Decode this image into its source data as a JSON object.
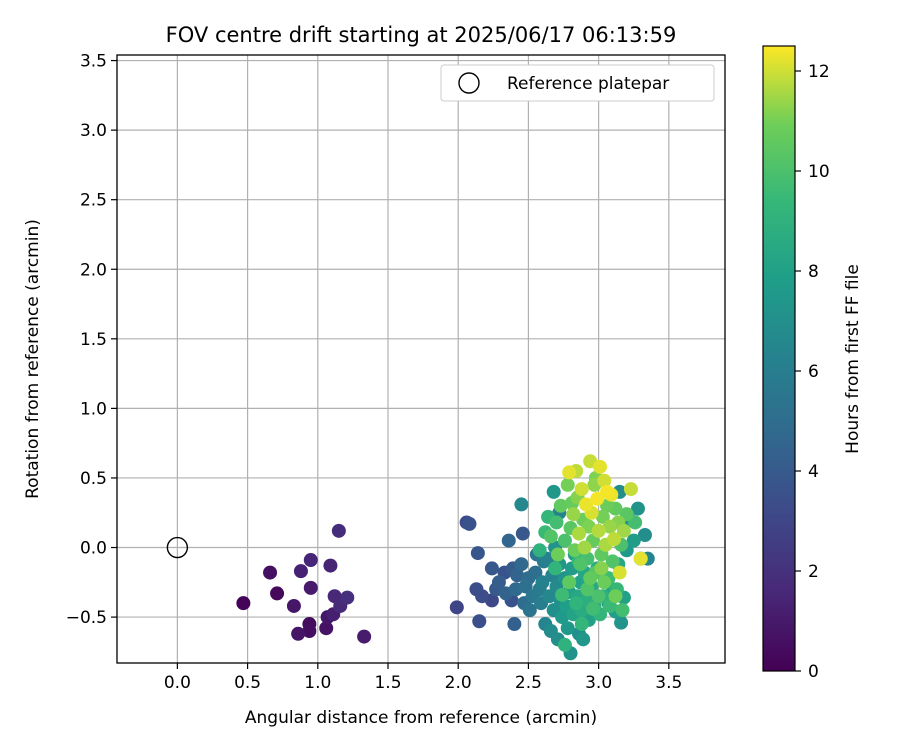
{
  "chart_data": {
    "type": "scatter",
    "title": "FOV centre drift starting at 2025/06/17 06:13:59",
    "xlabel": "Angular distance from reference (arcmin)",
    "ylabel": "Rotation from reference (arcmin)",
    "xlim": [
      -0.43,
      3.9
    ],
    "ylim": [
      -0.83,
      3.54
    ],
    "x_ticks": [
      "0.0",
      "0.5",
      "1.0",
      "1.5",
      "2.0",
      "2.5",
      "3.0",
      "3.5"
    ],
    "y_ticks": [
      "−0.5",
      "0.0",
      "0.5",
      "1.0",
      "1.5",
      "2.0",
      "2.5",
      "3.0",
      "3.5"
    ],
    "grid": true,
    "legend": {
      "position": "top-right",
      "entries": [
        {
          "label": "Reference platepar",
          "marker": "hollow-circle"
        }
      ]
    },
    "reference_point": {
      "x": 0.0,
      "y": 0.0
    },
    "colorbar": {
      "label": "Hours from first FF file",
      "range": [
        0,
        12.5
      ],
      "ticks": [
        "0",
        "2",
        "4",
        "6",
        "8",
        "10",
        "12"
      ],
      "colormap": "viridis"
    },
    "points": [
      {
        "x": 0.47,
        "y": -0.4,
        "c": 0.1
      },
      {
        "x": 0.66,
        "y": -0.18,
        "c": 0.6
      },
      {
        "x": 0.71,
        "y": -0.33,
        "c": 0.3
      },
      {
        "x": 0.83,
        "y": -0.42,
        "c": 0.9
      },
      {
        "x": 0.86,
        "y": -0.62,
        "c": 0.8
      },
      {
        "x": 0.88,
        "y": -0.17,
        "c": 1.3
      },
      {
        "x": 0.94,
        "y": -0.55,
        "c": 0.4
      },
      {
        "x": 0.94,
        "y": -0.6,
        "c": 0.5
      },
      {
        "x": 0.95,
        "y": -0.09,
        "c": 1.5
      },
      {
        "x": 0.95,
        "y": -0.29,
        "c": 1.0
      },
      {
        "x": 1.06,
        "y": -0.58,
        "c": 0.7
      },
      {
        "x": 1.07,
        "y": -0.5,
        "c": 0.9
      },
      {
        "x": 1.09,
        "y": -0.13,
        "c": 1.4
      },
      {
        "x": 1.11,
        "y": -0.48,
        "c": 1.2
      },
      {
        "x": 1.12,
        "y": -0.35,
        "c": 1.6
      },
      {
        "x": 1.16,
        "y": -0.42,
        "c": 1.7
      },
      {
        "x": 1.15,
        "y": 0.12,
        "c": 1.8
      },
      {
        "x": 1.21,
        "y": -0.36,
        "c": 1.9
      },
      {
        "x": 1.33,
        "y": -0.64,
        "c": 1.1
      },
      {
        "x": 1.99,
        "y": -0.43,
        "c": 3.0
      },
      {
        "x": 2.06,
        "y": 0.18,
        "c": 3.2
      },
      {
        "x": 2.08,
        "y": 0.17,
        "c": 3.6
      },
      {
        "x": 2.13,
        "y": -0.3,
        "c": 3.4
      },
      {
        "x": 2.14,
        "y": -0.04,
        "c": 3.8
      },
      {
        "x": 2.15,
        "y": -0.53,
        "c": 3.5
      },
      {
        "x": 2.17,
        "y": -0.35,
        "c": 3.3
      },
      {
        "x": 2.24,
        "y": -0.15,
        "c": 3.9
      },
      {
        "x": 2.24,
        "y": -0.38,
        "c": 3.1
      },
      {
        "x": 2.27,
        "y": -0.3,
        "c": 4.0
      },
      {
        "x": 2.29,
        "y": -0.25,
        "c": 4.2
      },
      {
        "x": 2.33,
        "y": -0.18,
        "c": 3.7
      },
      {
        "x": 2.34,
        "y": -0.33,
        "c": 4.4
      },
      {
        "x": 2.36,
        "y": 0.05,
        "c": 4.6
      },
      {
        "x": 2.38,
        "y": -0.38,
        "c": 3.6
      },
      {
        "x": 2.39,
        "y": -0.15,
        "c": 4.1
      },
      {
        "x": 2.4,
        "y": -0.55,
        "c": 4.3
      },
      {
        "x": 2.41,
        "y": -0.3,
        "c": 4.8
      },
      {
        "x": 2.42,
        "y": -0.2,
        "c": 4.5
      },
      {
        "x": 2.45,
        "y": -0.12,
        "c": 4.7
      },
      {
        "x": 2.46,
        "y": 0.1,
        "c": 3.9
      },
      {
        "x": 2.47,
        "y": -0.4,
        "c": 5.0
      },
      {
        "x": 2.48,
        "y": -0.28,
        "c": 5.2
      },
      {
        "x": 2.5,
        "y": -0.22,
        "c": 4.9
      },
      {
        "x": 2.51,
        "y": -0.45,
        "c": 5.4
      },
      {
        "x": 2.53,
        "y": -0.35,
        "c": 5.6
      },
      {
        "x": 2.55,
        "y": -0.18,
        "c": 5.1
      },
      {
        "x": 2.56,
        "y": -0.05,
        "c": 5.5
      },
      {
        "x": 2.58,
        "y": -0.3,
        "c": 5.8
      },
      {
        "x": 2.59,
        "y": -0.4,
        "c": 6.0
      },
      {
        "x": 2.6,
        "y": -0.25,
        "c": 6.2
      },
      {
        "x": 2.61,
        "y": -0.1,
        "c": 5.9
      },
      {
        "x": 2.62,
        "y": -0.55,
        "c": 6.4
      },
      {
        "x": 2.63,
        "y": -0.08,
        "c": 6.1
      },
      {
        "x": 2.65,
        "y": -0.35,
        "c": 6.6
      },
      {
        "x": 2.66,
        "y": -0.6,
        "c": 6.8
      },
      {
        "x": 2.67,
        "y": -0.2,
        "c": 6.3
      },
      {
        "x": 2.68,
        "y": -0.45,
        "c": 7.0
      },
      {
        "x": 2.69,
        "y": 0.0,
        "c": 7.2
      },
      {
        "x": 2.7,
        "y": -0.28,
        "c": 6.7
      },
      {
        "x": 2.71,
        "y": -0.66,
        "c": 6.9
      },
      {
        "x": 2.72,
        "y": -0.12,
        "c": 7.4
      },
      {
        "x": 2.73,
        "y": -0.38,
        "c": 7.1
      },
      {
        "x": 2.74,
        "y": -0.5,
        "c": 7.6
      },
      {
        "x": 2.76,
        "y": -0.22,
        "c": 7.3
      },
      {
        "x": 2.77,
        "y": -0.42,
        "c": 7.8
      },
      {
        "x": 2.78,
        "y": -0.58,
        "c": 7.5
      },
      {
        "x": 2.79,
        "y": -0.32,
        "c": 8.0
      },
      {
        "x": 2.8,
        "y": -0.76,
        "c": 7.2
      },
      {
        "x": 2.81,
        "y": -0.15,
        "c": 7.7
      },
      {
        "x": 2.82,
        "y": -0.48,
        "c": 8.2
      },
      {
        "x": 2.83,
        "y": -0.05,
        "c": 7.9
      },
      {
        "x": 2.85,
        "y": -0.35,
        "c": 8.4
      },
      {
        "x": 2.86,
        "y": -0.62,
        "c": 7.0
      },
      {
        "x": 2.87,
        "y": -0.25,
        "c": 8.1
      },
      {
        "x": 2.88,
        "y": -0.45,
        "c": 8.6
      },
      {
        "x": 2.89,
        "y": -0.66,
        "c": 7.4
      },
      {
        "x": 2.9,
        "y": -0.18,
        "c": 8.3
      },
      {
        "x": 2.92,
        "y": -0.38,
        "c": 8.8
      },
      {
        "x": 2.93,
        "y": -0.52,
        "c": 8.0
      },
      {
        "x": 2.95,
        "y": -0.28,
        "c": 8.5
      },
      {
        "x": 2.97,
        "y": -0.42,
        "c": 9.0
      },
      {
        "x": 2.99,
        "y": -0.15,
        "c": 8.7
      },
      {
        "x": 3.01,
        "y": -0.48,
        "c": 9.2
      },
      {
        "x": 3.03,
        "y": -0.35,
        "c": 8.9
      },
      {
        "x": 3.05,
        "y": -0.22,
        "c": 9.4
      },
      {
        "x": 3.07,
        "y": -0.4,
        "c": 7.6
      },
      {
        "x": 3.1,
        "y": -0.3,
        "c": 8.2
      },
      {
        "x": 3.12,
        "y": -0.46,
        "c": 7.8
      },
      {
        "x": 3.14,
        "y": -0.12,
        "c": 8.4
      },
      {
        "x": 3.16,
        "y": -0.54,
        "c": 7.3
      },
      {
        "x": 3.18,
        "y": -0.36,
        "c": 8.0
      },
      {
        "x": 3.2,
        "y": -0.02,
        "c": 7.5
      },
      {
        "x": 3.22,
        "y": 0.2,
        "c": 7.1
      },
      {
        "x": 3.25,
        "y": 0.05,
        "c": 7.7
      },
      {
        "x": 3.28,
        "y": 0.28,
        "c": 7.2
      },
      {
        "x": 3.3,
        "y": -0.08,
        "c": 7.9
      },
      {
        "x": 3.33,
        "y": 0.09,
        "c": 6.9
      },
      {
        "x": 3.35,
        "y": -0.08,
        "c": 6.4
      },
      {
        "x": 3.15,
        "y": 0.4,
        "c": 6.8
      },
      {
        "x": 2.68,
        "y": 0.4,
        "c": 7.4
      },
      {
        "x": 2.45,
        "y": 0.31,
        "c": 6.6
      },
      {
        "x": 2.72,
        "y": 0.25,
        "c": 6.3
      },
      {
        "x": 2.62,
        "y": 0.11,
        "c": 9.5
      },
      {
        "x": 2.66,
        "y": 0.08,
        "c": 10.2
      },
      {
        "x": 2.7,
        "y": 0.18,
        "c": 9.8
      },
      {
        "x": 2.73,
        "y": 0.3,
        "c": 10.6
      },
      {
        "x": 2.76,
        "y": 0.05,
        "c": 10.0
      },
      {
        "x": 2.78,
        "y": 0.45,
        "c": 11.0
      },
      {
        "x": 2.79,
        "y": 0.54,
        "c": 12.2
      },
      {
        "x": 2.8,
        "y": 0.14,
        "c": 10.4
      },
      {
        "x": 2.82,
        "y": 0.24,
        "c": 11.4
      },
      {
        "x": 2.83,
        "y": -0.02,
        "c": 10.8
      },
      {
        "x": 2.84,
        "y": 0.55,
        "c": 11.8
      },
      {
        "x": 2.85,
        "y": 0.36,
        "c": 11.2
      },
      {
        "x": 2.86,
        "y": 0.1,
        "c": 11.6
      },
      {
        "x": 2.87,
        "y": -0.12,
        "c": 10.1
      },
      {
        "x": 2.88,
        "y": 0.42,
        "c": 12.0
      },
      {
        "x": 2.89,
        "y": 0.2,
        "c": 10.9
      },
      {
        "x": 2.9,
        "y": 0.0,
        "c": 11.5
      },
      {
        "x": 2.91,
        "y": 0.31,
        "c": 12.3
      },
      {
        "x": 2.92,
        "y": -0.08,
        "c": 9.9
      },
      {
        "x": 2.93,
        "y": 0.15,
        "c": 11.1
      },
      {
        "x": 2.94,
        "y": 0.62,
        "c": 11.9
      },
      {
        "x": 2.95,
        "y": 0.25,
        "c": 12.1
      },
      {
        "x": 2.96,
        "y": 0.05,
        "c": 10.7
      },
      {
        "x": 2.97,
        "y": 0.45,
        "c": 11.3
      },
      {
        "x": 2.98,
        "y": -0.18,
        "c": 10.3
      },
      {
        "x": 2.99,
        "y": 0.35,
        "c": 12.4
      },
      {
        "x": 3.0,
        "y": 0.12,
        "c": 11.7
      },
      {
        "x": 3.01,
        "y": 0.58,
        "c": 12.2
      },
      {
        "x": 3.02,
        "y": -0.05,
        "c": 10.5
      },
      {
        "x": 3.03,
        "y": 0.22,
        "c": 11.0
      },
      {
        "x": 3.04,
        "y": 0.48,
        "c": 12.0
      },
      {
        "x": 3.05,
        "y": 0.02,
        "c": 11.6
      },
      {
        "x": 3.06,
        "y": 0.3,
        "c": 10.8
      },
      {
        "x": 3.07,
        "y": -0.22,
        "c": 9.6
      },
      {
        "x": 3.08,
        "y": 0.15,
        "c": 11.4
      },
      {
        "x": 3.09,
        "y": 0.38,
        "c": 12.3
      },
      {
        "x": 3.1,
        "y": -0.1,
        "c": 10.2
      },
      {
        "x": 3.11,
        "y": 0.06,
        "c": 11.8
      },
      {
        "x": 3.12,
        "y": 0.28,
        "c": 10.6
      },
      {
        "x": 3.13,
        "y": -0.3,
        "c": 9.4
      },
      {
        "x": 3.14,
        "y": 0.18,
        "c": 11.2
      },
      {
        "x": 3.15,
        "y": -0.18,
        "c": 12.1
      },
      {
        "x": 3.16,
        "y": 0.02,
        "c": 10.0
      },
      {
        "x": 3.18,
        "y": 0.12,
        "c": 11.5
      },
      {
        "x": 3.2,
        "y": 0.24,
        "c": 10.4
      },
      {
        "x": 3.23,
        "y": 0.42,
        "c": 11.9
      },
      {
        "x": 3.26,
        "y": 0.18,
        "c": 9.8
      },
      {
        "x": 3.3,
        "y": -0.08,
        "c": 12.2
      },
      {
        "x": 2.69,
        "y": -0.15,
        "c": 9.2
      },
      {
        "x": 2.74,
        "y": -0.34,
        "c": 9.6
      },
      {
        "x": 2.79,
        "y": -0.25,
        "c": 10.5
      },
      {
        "x": 2.84,
        "y": -0.4,
        "c": 9.1
      },
      {
        "x": 2.88,
        "y": -0.55,
        "c": 9.3
      },
      {
        "x": 2.92,
        "y": -0.3,
        "c": 10.2
      },
      {
        "x": 2.96,
        "y": -0.44,
        "c": 9.7
      },
      {
        "x": 3.0,
        "y": -0.35,
        "c": 10.0
      },
      {
        "x": 3.04,
        "y": -0.25,
        "c": 10.8
      },
      {
        "x": 3.08,
        "y": -0.42,
        "c": 9.5
      },
      {
        "x": 3.12,
        "y": -0.35,
        "c": 10.9
      },
      {
        "x": 3.17,
        "y": -0.45,
        "c": 9.8
      },
      {
        "x": 2.76,
        "y": -0.7,
        "c": 9.0
      },
      {
        "x": 2.86,
        "y": -0.1,
        "c": 9.4
      },
      {
        "x": 2.94,
        "y": -0.22,
        "c": 10.6
      },
      {
        "x": 3.02,
        "y": -0.15,
        "c": 11.2
      },
      {
        "x": 2.71,
        "y": -0.05,
        "c": 10.9
      },
      {
        "x": 2.81,
        "y": 0.32,
        "c": 10.7
      },
      {
        "x": 2.98,
        "y": 0.5,
        "c": 11.1
      },
      {
        "x": 3.06,
        "y": 0.4,
        "c": 12.4
      },
      {
        "x": 2.64,
        "y": 0.22,
        "c": 9.3
      },
      {
        "x": 2.58,
        "y": -0.02,
        "c": 9.0
      }
    ]
  }
}
